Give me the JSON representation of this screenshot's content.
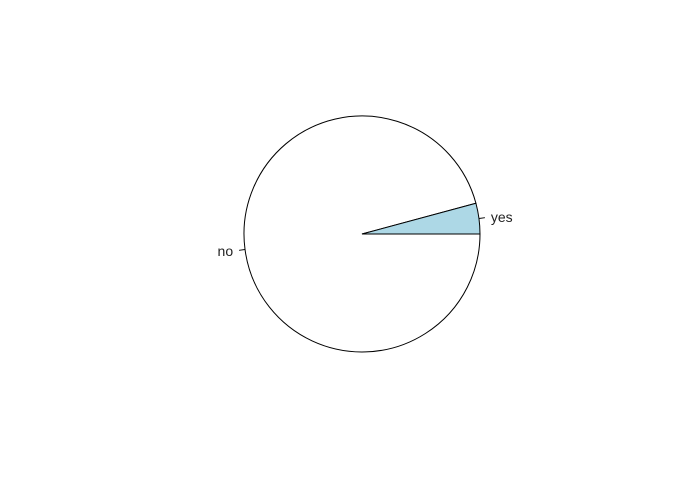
{
  "chart_data": {
    "type": "pie",
    "title": "",
    "categories": [
      "no",
      "yes"
    ],
    "values": [
      95.8,
      4.2
    ],
    "colors": [
      "#ffffff",
      "#add8e6"
    ],
    "start_angle_deg": 0,
    "direction": "clockwise",
    "border_color": "#000000"
  }
}
